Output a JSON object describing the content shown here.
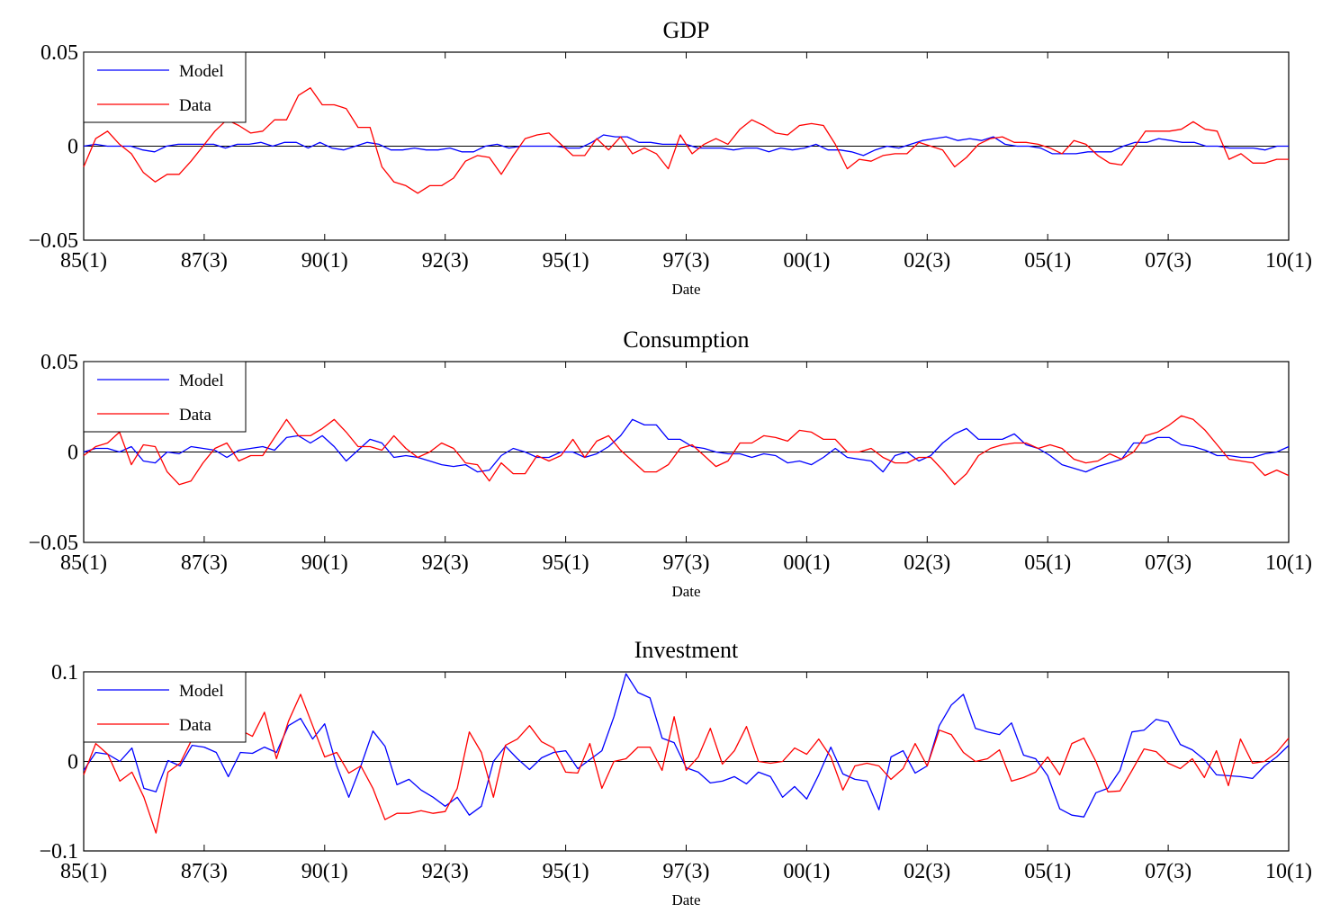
{
  "colors": {
    "model": "#0000ff",
    "data": "#ff0000",
    "axis": "#000000"
  },
  "chart_data": [
    {
      "type": "line",
      "title": "GDP",
      "xlabel": "Date",
      "ylabel": "",
      "ylim": [
        -0.05,
        0.05
      ],
      "yticks": [
        -0.05,
        0,
        0.05
      ],
      "ytick_labels": [
        "−0.05",
        "0",
        "0.05"
      ],
      "xlim": [
        0,
        100
      ],
      "xticks": [
        0,
        10,
        20,
        30,
        40,
        50,
        60,
        70,
        80,
        90,
        100
      ],
      "xtick_labels": [
        "85(1)",
        "87(3)",
        "90(1)",
        "92(3)",
        "95(1)",
        "97(3)",
        "00(1)",
        "02(3)",
        "05(1)",
        "07(3)",
        "10(1)"
      ],
      "grid": false,
      "legend": "top-left",
      "series": [
        {
          "name": "Model",
          "color": "#0000ff",
          "values": [
            0.0,
            0.001,
            0.0,
            0.0,
            0.0,
            -0.002,
            -0.003,
            0.0,
            0.001,
            0.001,
            0.001,
            0.001,
            -0.001,
            0.001,
            0.001,
            0.002,
            0.0,
            0.002,
            0.002,
            -0.001,
            0.002,
            -0.001,
            -0.002,
            0.0,
            0.002,
            0.001,
            -0.002,
            -0.002,
            -0.001,
            -0.002,
            -0.002,
            -0.001,
            -0.003,
            -0.003,
            0.0,
            0.001,
            -0.001,
            0.0,
            0.0,
            0.0,
            0.0,
            -0.001,
            -0.001,
            0.002,
            0.006,
            0.005,
            0.005,
            0.002,
            0.002,
            0.001,
            0.001,
            0.001,
            -0.001,
            -0.001,
            -0.001,
            -0.002,
            -0.001,
            -0.001,
            -0.003,
            -0.001,
            -0.002,
            -0.001,
            0.001,
            -0.002,
            -0.002,
            -0.003,
            -0.005,
            -0.002,
            0.0,
            -0.001,
            0.001,
            0.003,
            0.004,
            0.005,
            0.003,
            0.004,
            0.003,
            0.005,
            0.001,
            0.0,
            0.0,
            -0.001,
            -0.004,
            -0.004,
            -0.004,
            -0.003,
            -0.003,
            -0.003,
            0.0,
            0.002,
            0.002,
            0.004,
            0.003,
            0.002,
            0.002,
            0.0,
            0.0,
            -0.001,
            -0.001,
            -0.001,
            -0.002,
            0.0,
            0.0
          ]
        },
        {
          "name": "Data",
          "color": "#ff0000",
          "values": [
            -0.011,
            0.004,
            0.008,
            0.001,
            -0.004,
            -0.014,
            -0.019,
            -0.015,
            -0.015,
            -0.008,
            0.0,
            0.008,
            0.014,
            0.011,
            0.007,
            0.008,
            0.014,
            0.014,
            0.027,
            0.031,
            0.022,
            0.022,
            0.02,
            0.01,
            0.01,
            -0.011,
            -0.019,
            -0.021,
            -0.025,
            -0.021,
            -0.021,
            -0.017,
            -0.008,
            -0.005,
            -0.006,
            -0.015,
            -0.005,
            0.004,
            0.006,
            0.007,
            0.001,
            -0.005,
            -0.005,
            0.004,
            -0.002,
            0.005,
            -0.004,
            -0.001,
            -0.004,
            -0.012,
            0.006,
            -0.004,
            0.001,
            0.004,
            0.001,
            0.009,
            0.014,
            0.011,
            0.007,
            0.006,
            0.011,
            0.012,
            0.011,
            0.001,
            -0.012,
            -0.007,
            -0.008,
            -0.005,
            -0.004,
            -0.004,
            0.002,
            0.0,
            -0.002,
            -0.011,
            -0.006,
            0.001,
            0.004,
            0.005,
            0.002,
            0.002,
            0.001,
            -0.001,
            -0.004,
            0.003,
            0.001,
            -0.005,
            -0.009,
            -0.01,
            -0.001,
            0.008,
            0.008,
            0.008,
            0.009,
            0.013,
            0.009,
            0.008,
            -0.007,
            -0.004,
            -0.009,
            -0.009,
            -0.007,
            -0.007
          ]
        }
      ]
    },
    {
      "type": "line",
      "title": "Consumption",
      "xlabel": "Date",
      "ylabel": "",
      "ylim": [
        -0.05,
        0.05
      ],
      "yticks": [
        -0.05,
        0,
        0.05
      ],
      "ytick_labels": [
        "−0.05",
        "0",
        "0.05"
      ],
      "xlim": [
        0,
        100
      ],
      "xticks": [
        0,
        10,
        20,
        30,
        40,
        50,
        60,
        70,
        80,
        90,
        100
      ],
      "xtick_labels": [
        "85(1)",
        "87(3)",
        "90(1)",
        "92(3)",
        "95(1)",
        "97(3)",
        "00(1)",
        "02(3)",
        "05(1)",
        "07(3)",
        "10(1)"
      ],
      "grid": false,
      "legend": "top-left",
      "series": [
        {
          "name": "Model",
          "color": "#0000ff",
          "values": [
            0.0,
            0.002,
            0.002,
            0.0,
            0.003,
            -0.005,
            -0.006,
            0.0,
            -0.001,
            0.003,
            0.002,
            0.001,
            -0.003,
            0.001,
            0.002,
            0.003,
            0.001,
            0.008,
            0.009,
            0.005,
            0.009,
            0.003,
            -0.005,
            0.001,
            0.007,
            0.005,
            -0.003,
            -0.002,
            -0.003,
            -0.005,
            -0.007,
            -0.008,
            -0.007,
            -0.011,
            -0.01,
            -0.002,
            0.002,
            0.0,
            -0.003,
            -0.003,
            0.0,
            0.0,
            -0.003,
            -0.001,
            0.003,
            0.009,
            0.018,
            0.015,
            0.015,
            0.007,
            0.007,
            0.003,
            0.002,
            0.0,
            -0.001,
            -0.001,
            -0.003,
            -0.001,
            -0.002,
            -0.006,
            -0.005,
            -0.007,
            -0.003,
            0.002,
            -0.003,
            -0.004,
            -0.005,
            -0.011,
            -0.002,
            0.0,
            -0.005,
            -0.002,
            0.005,
            0.01,
            0.013,
            0.007,
            0.007,
            0.007,
            0.01,
            0.004,
            0.002,
            -0.002,
            -0.007,
            -0.009,
            -0.011,
            -0.008,
            -0.006,
            -0.004,
            0.005,
            0.005,
            0.008,
            0.008,
            0.004,
            0.003,
            0.001,
            -0.002,
            -0.002,
            -0.003,
            -0.003,
            -0.001,
            0.0,
            0.003
          ]
        },
        {
          "name": "Data",
          "color": "#ff0000",
          "values": [
            -0.002,
            0.003,
            0.005,
            0.011,
            -0.007,
            0.004,
            0.003,
            -0.011,
            -0.018,
            -0.016,
            -0.006,
            0.002,
            0.005,
            -0.005,
            -0.002,
            -0.002,
            0.008,
            0.018,
            0.009,
            0.009,
            0.013,
            0.018,
            0.011,
            0.003,
            0.003,
            0.001,
            0.009,
            0.002,
            -0.003,
            0.0,
            0.005,
            0.002,
            -0.006,
            -0.007,
            -0.016,
            -0.006,
            -0.012,
            -0.012,
            -0.002,
            -0.005,
            -0.002,
            0.007,
            -0.003,
            0.006,
            0.009,
            0.001,
            -0.005,
            -0.011,
            -0.011,
            -0.007,
            0.002,
            0.004,
            -0.002,
            -0.008,
            -0.005,
            0.005,
            0.005,
            0.009,
            0.008,
            0.006,
            0.012,
            0.011,
            0.007,
            0.007,
            0.0,
            0.0,
            0.002,
            -0.003,
            -0.006,
            -0.006,
            -0.003,
            -0.003,
            -0.01,
            -0.018,
            -0.012,
            -0.002,
            0.002,
            0.004,
            0.005,
            0.005,
            0.002,
            0.004,
            0.002,
            -0.004,
            -0.006,
            -0.005,
            -0.001,
            -0.004,
            0.0,
            0.009,
            0.011,
            0.015,
            0.02,
            0.018,
            0.012,
            0.004,
            -0.004,
            -0.005,
            -0.006,
            -0.013,
            -0.01,
            -0.013
          ]
        }
      ]
    },
    {
      "type": "line",
      "title": "Investment",
      "xlabel": "Date",
      "ylabel": "",
      "ylim": [
        -0.1,
        0.1
      ],
      "yticks": [
        -0.1,
        0,
        0.1
      ],
      "ytick_labels": [
        "−0.1",
        "0",
        "0.1"
      ],
      "xlim": [
        0,
        100
      ],
      "xticks": [
        0,
        10,
        20,
        30,
        40,
        50,
        60,
        70,
        80,
        90,
        100
      ],
      "xtick_labels": [
        "85(1)",
        "87(3)",
        "90(1)",
        "92(3)",
        "95(1)",
        "97(3)",
        "00(1)",
        "02(3)",
        "05(1)",
        "07(3)",
        "10(1)"
      ],
      "grid": false,
      "legend": "top-left",
      "series": [
        {
          "name": "Model",
          "color": "#0000ff",
          "values": [
            -0.01,
            0.01,
            0.008,
            0.0,
            0.015,
            -0.03,
            -0.034,
            0.001,
            -0.005,
            0.018,
            0.016,
            0.01,
            -0.017,
            0.01,
            0.009,
            0.016,
            0.01,
            0.04,
            0.048,
            0.025,
            0.042,
            -0.005,
            -0.04,
            -0.005,
            0.034,
            0.017,
            -0.026,
            -0.02,
            -0.032,
            -0.04,
            -0.05,
            -0.04,
            -0.06,
            -0.05,
            0.0,
            0.017,
            0.003,
            -0.009,
            0.004,
            0.01,
            0.012,
            -0.008,
            0.002,
            0.012,
            0.05,
            0.098,
            0.077,
            0.071,
            0.026,
            0.021,
            -0.007,
            -0.012,
            -0.024,
            -0.022,
            -0.017,
            -0.025,
            -0.012,
            -0.017,
            -0.04,
            -0.028,
            -0.042,
            -0.015,
            0.016,
            -0.014,
            -0.02,
            -0.022,
            -0.054,
            0.005,
            0.012,
            -0.013,
            -0.005,
            0.04,
            0.063,
            0.075,
            0.037,
            0.033,
            0.03,
            0.043,
            0.007,
            0.003,
            -0.016,
            -0.053,
            -0.06,
            -0.062,
            -0.035,
            -0.03,
            -0.01,
            0.033,
            0.035,
            0.047,
            0.044,
            0.019,
            0.013,
            0.002,
            -0.015,
            -0.016,
            -0.017,
            -0.019,
            -0.005,
            0.005,
            0.018
          ]
        },
        {
          "name": "Data",
          "color": "#ff0000",
          "values": [
            -0.015,
            0.02,
            0.008,
            -0.022,
            -0.012,
            -0.04,
            -0.08,
            -0.012,
            -0.002,
            0.025,
            0.03,
            0.025,
            0.022,
            0.035,
            0.028,
            0.055,
            0.003,
            0.045,
            0.075,
            0.04,
            0.005,
            0.01,
            -0.013,
            -0.005,
            -0.03,
            -0.065,
            -0.058,
            -0.058,
            -0.055,
            -0.058,
            -0.056,
            -0.03,
            0.033,
            0.01,
            -0.04,
            0.018,
            0.025,
            0.04,
            0.022,
            0.015,
            -0.012,
            -0.013,
            0.02,
            -0.03,
            0.0,
            0.003,
            0.016,
            0.016,
            -0.01,
            0.05,
            -0.01,
            0.005,
            0.037,
            -0.003,
            0.012,
            0.039,
            0.0,
            -0.002,
            0.0,
            0.015,
            0.008,
            0.025,
            0.005,
            -0.032,
            -0.005,
            -0.002,
            -0.005,
            -0.02,
            -0.008,
            0.02,
            -0.005,
            0.035,
            0.03,
            0.01,
            0.0,
            0.003,
            0.013,
            -0.022,
            -0.018,
            -0.012,
            0.005,
            -0.015,
            0.02,
            0.026,
            0.0,
            -0.034,
            -0.033,
            -0.01,
            0.014,
            0.011,
            -0.002,
            -0.008,
            0.003,
            -0.018,
            0.012,
            -0.027,
            0.025,
            -0.002,
            0.0,
            0.01,
            0.026
          ]
        }
      ]
    }
  ]
}
